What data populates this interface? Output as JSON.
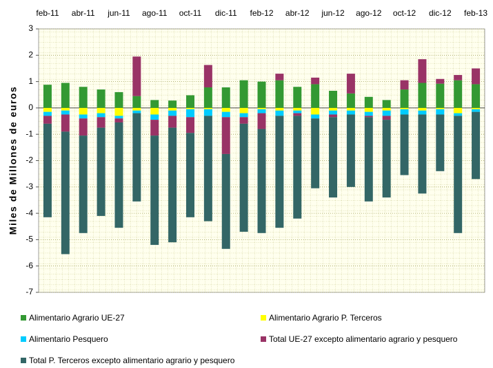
{
  "chart_data": {
    "type": "bar",
    "stacked": true,
    "ylabel": "Miles de Millones de euros",
    "categories": [
      "feb-11",
      null,
      "abr-11",
      null,
      "jun-11",
      null,
      "ago-11",
      null,
      "oct-11",
      null,
      "dic-11",
      null,
      "feb-12",
      null,
      "abr-12",
      null,
      "jun-12",
      null,
      "ago-12",
      null,
      "oct-12",
      null,
      "dic-12",
      null,
      "feb-13"
    ],
    "ylim": [
      -7,
      3
    ],
    "yticks": [
      -7,
      -6,
      -5,
      -4,
      -3,
      -2,
      -1,
      0,
      1,
      2,
      3
    ],
    "grid": true,
    "series": [
      {
        "name": "Alimentario Agrario UE-27",
        "color": "#339933",
        "values": [
          0.88,
          0.95,
          0.8,
          0.7,
          0.6,
          0.45,
          0.3,
          0.28,
          0.48,
          0.78,
          0.78,
          1.05,
          1.0,
          1.05,
          0.8,
          0.9,
          0.65,
          0.55,
          0.42,
          0.3,
          0.7,
          0.95,
          0.92,
          1.05,
          0.9
        ]
      },
      {
        "name": "Alimentario Agrario P. Terceros",
        "color": "#ffff00",
        "values": [
          -0.15,
          -0.1,
          -0.25,
          -0.2,
          -0.3,
          -0.1,
          -0.25,
          -0.1,
          -0.05,
          -0.05,
          -0.15,
          -0.2,
          -0.05,
          -0.1,
          -0.1,
          -0.25,
          -0.1,
          -0.1,
          -0.15,
          -0.1,
          -0.05,
          -0.1,
          -0.05,
          -0.2,
          -0.05
        ]
      },
      {
        "name": "Alimentario Pesquero",
        "color": "#00ccff",
        "values": [
          -0.15,
          -0.15,
          -0.15,
          -0.15,
          -0.1,
          -0.1,
          -0.2,
          -0.2,
          -0.3,
          -0.25,
          -0.2,
          -0.15,
          -0.15,
          -0.2,
          -0.1,
          -0.15,
          -0.15,
          -0.15,
          -0.15,
          -0.2,
          -0.2,
          -0.15,
          -0.2,
          -0.1,
          -0.1
        ]
      },
      {
        "name": "Total UE-27 excepto alimentario agrario y pesquero",
        "color": "#993366",
        "values": [
          -0.3,
          -0.65,
          -0.65,
          -0.4,
          -0.15,
          1.5,
          -0.6,
          -0.45,
          -0.6,
          0.85,
          -1.4,
          -0.25,
          -0.6,
          0.25,
          -0.1,
          0.25,
          -0.1,
          0.75,
          -0.05,
          -0.15,
          0.35,
          0.9,
          0.18,
          0.2,
          0.6
        ]
      },
      {
        "name": "Total P. Terceros excepto alimentario agrario y pesquero",
        "color": "#336666",
        "values": [
          -3.55,
          -4.65,
          -3.7,
          -3.35,
          -4.0,
          -3.35,
          -4.15,
          -4.35,
          -3.2,
          -4.0,
          -3.6,
          -4.1,
          -3.95,
          -4.25,
          -3.9,
          -2.65,
          -3.05,
          -2.75,
          -3.2,
          -2.95,
          -2.3,
          -3.0,
          -2.15,
          -4.45,
          -2.55
        ]
      }
    ]
  }
}
